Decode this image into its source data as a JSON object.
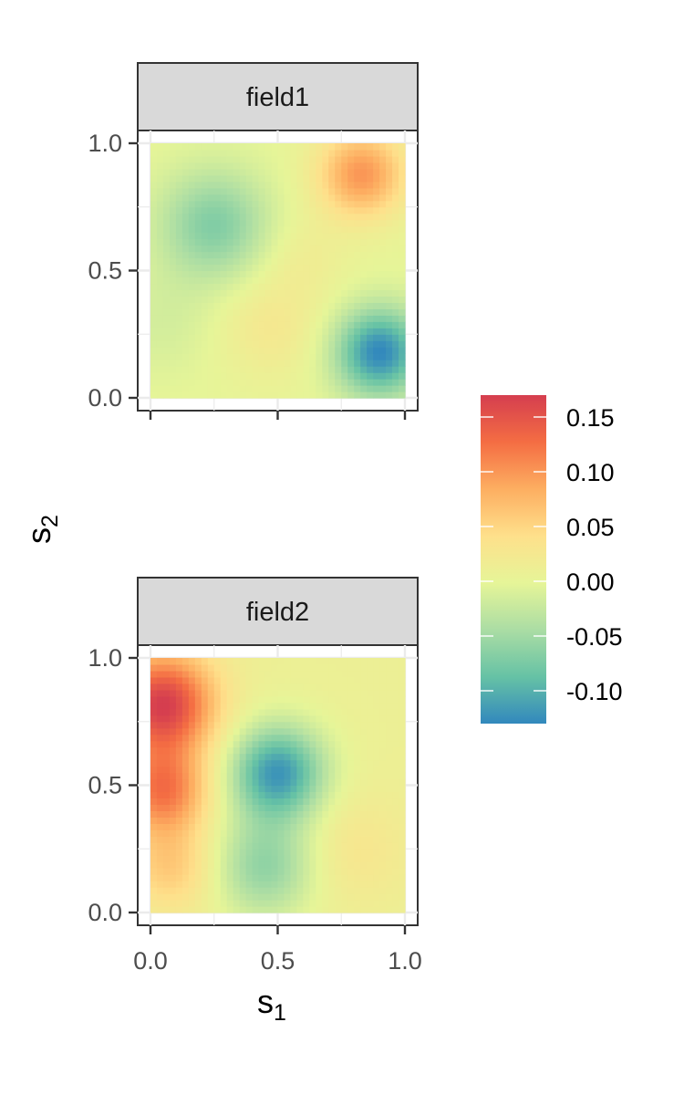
{
  "chart_data": {
    "type": "heatmap",
    "title": "",
    "xlabel": {
      "main": "s",
      "sub": "1"
    },
    "ylabel": {
      "main": "s",
      "sub": "2"
    },
    "xlim": [
      0,
      1
    ],
    "ylim": [
      0,
      1
    ],
    "x_ticks": [
      {
        "value": 0,
        "label": "0.0"
      },
      {
        "value": 0.5,
        "label": "0.5"
      },
      {
        "value": 1,
        "label": "1.0"
      }
    ],
    "y_ticks": [
      {
        "value": 0,
        "label": "0.0"
      },
      {
        "value": 0.5,
        "label": "0.5"
      },
      {
        "value": 1,
        "label": "1.0"
      }
    ],
    "grid": true,
    "color_scale": {
      "palette": "Spectral",
      "min": -0.13,
      "max": 0.17,
      "stops": [
        "#3288bd",
        "#66c2a5",
        "#abdda4",
        "#e6f598",
        "#fee08b",
        "#fdae61",
        "#f46d43",
        "#d53e4f"
      ],
      "breaks": [
        {
          "value": 0.15,
          "label": "0.15"
        },
        {
          "value": 0.1,
          "label": "0.10"
        },
        {
          "value": 0.05,
          "label": "0.05"
        },
        {
          "value": 0.0,
          "label": "0.00"
        },
        {
          "value": -0.05,
          "label": "-0.05"
        },
        {
          "value": -0.1,
          "label": "-0.10"
        }
      ],
      "legend_position": "right"
    },
    "panels": [
      {
        "strip_label": "field1",
        "base": 0.0,
        "features": [
          {
            "x": 0.83,
            "y": 0.88,
            "amp": 0.1,
            "sigma": 0.12
          },
          {
            "x": 0.25,
            "y": 0.68,
            "amp": -0.07,
            "sigma": 0.15
          },
          {
            "x": 0.9,
            "y": 0.18,
            "amp": -0.13,
            "sigma": 0.12
          },
          {
            "x": 0.47,
            "y": 0.28,
            "amp": 0.025,
            "sigma": 0.14
          },
          {
            "x": 0.05,
            "y": 0.3,
            "amp": -0.015,
            "sigma": 0.15
          },
          {
            "x": 0.6,
            "y": 0.55,
            "amp": 0.015,
            "sigma": 0.12
          }
        ]
      },
      {
        "strip_label": "field2",
        "base": 0.01,
        "features": [
          {
            "x": 0.05,
            "y": 0.82,
            "amp": 0.16,
            "sigma": 0.14
          },
          {
            "x": 0.05,
            "y": 0.48,
            "amp": 0.11,
            "sigma": 0.12
          },
          {
            "x": 0.08,
            "y": 0.18,
            "amp": 0.05,
            "sigma": 0.12
          },
          {
            "x": 0.5,
            "y": 0.55,
            "amp": -0.13,
            "sigma": 0.13
          },
          {
            "x": 0.45,
            "y": 0.18,
            "amp": -0.07,
            "sigma": 0.14
          },
          {
            "x": 0.8,
            "y": 0.25,
            "amp": 0.02,
            "sigma": 0.15
          }
        ]
      }
    ]
  }
}
